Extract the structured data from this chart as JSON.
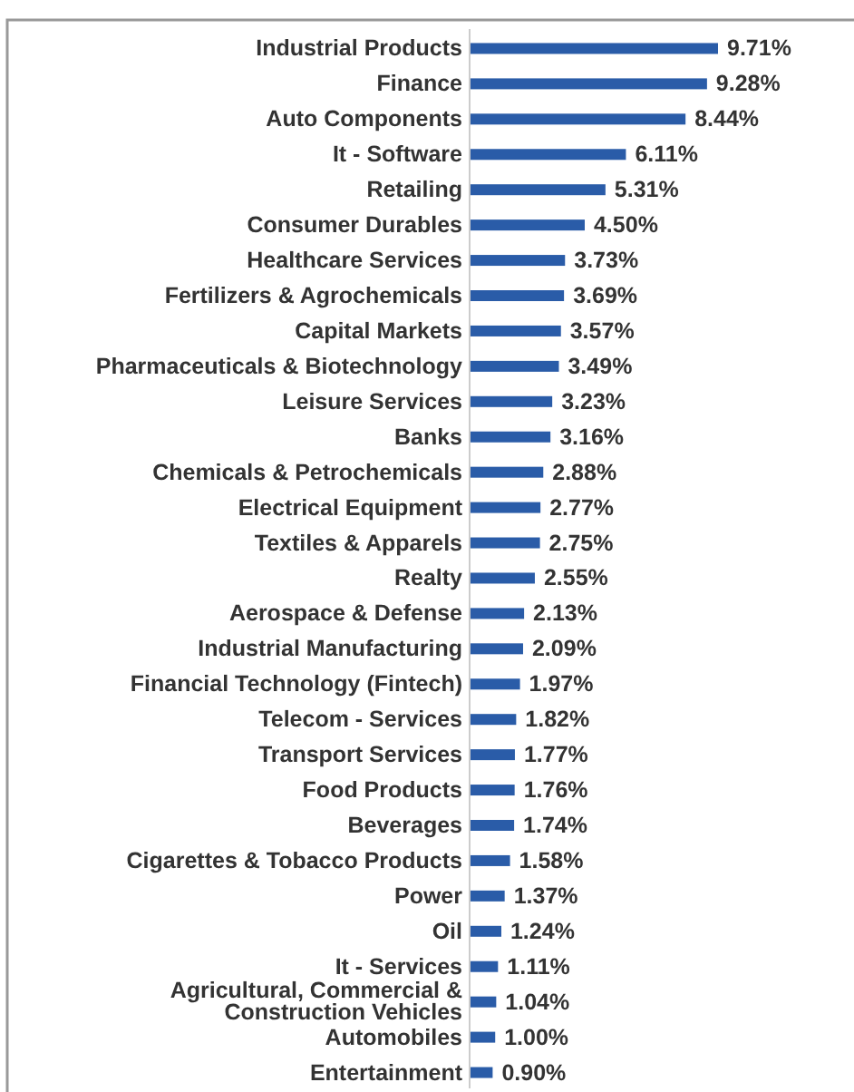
{
  "chart_data": {
    "type": "bar",
    "orientation": "horizontal",
    "categories": [
      "Industrial Products",
      "Finance",
      "Auto Components",
      "It - Software",
      "Retailing",
      "Consumer Durables",
      "Healthcare Services",
      "Fertilizers & Agrochemicals",
      "Capital Markets",
      "Pharmaceuticals & Biotechnology",
      "Leisure Services",
      "Banks",
      "Chemicals & Petrochemicals",
      "Electrical Equipment",
      "Textiles & Apparels",
      "Realty",
      "Aerospace & Defense",
      "Industrial Manufacturing",
      "Financial Technology (Fintech)",
      "Telecom - Services",
      "Transport Services",
      "Food Products",
      "Beverages",
      "Cigarettes & Tobacco Products",
      "Power",
      "Oil",
      "It - Services",
      "Agricultural, Commercial & Construction Vehicles",
      "Automobiles",
      "Entertainment"
    ],
    "values": [
      9.71,
      9.28,
      8.44,
      6.11,
      5.31,
      4.5,
      3.73,
      3.69,
      3.57,
      3.49,
      3.23,
      3.16,
      2.88,
      2.77,
      2.75,
      2.55,
      2.13,
      2.09,
      1.97,
      1.82,
      1.77,
      1.76,
      1.74,
      1.58,
      1.37,
      1.24,
      1.11,
      1.04,
      1.0,
      0.9
    ],
    "value_labels": [
      "9.71%",
      "9.28%",
      "8.44%",
      "6.11%",
      "5.31%",
      "4.50%",
      "3.73%",
      "3.69%",
      "3.57%",
      "3.49%",
      "3.23%",
      "3.16%",
      "2.88%",
      "2.77%",
      "2.75%",
      "2.55%",
      "2.13%",
      "2.09%",
      "1.97%",
      "1.82%",
      "1.77%",
      "1.76%",
      "1.74%",
      "1.58%",
      "1.37%",
      "1.24%",
      "1.11%",
      "1.04%",
      "1.00%",
      "0.90%"
    ],
    "color": "#2a5ca8",
    "tick_labels": "y"
  }
}
